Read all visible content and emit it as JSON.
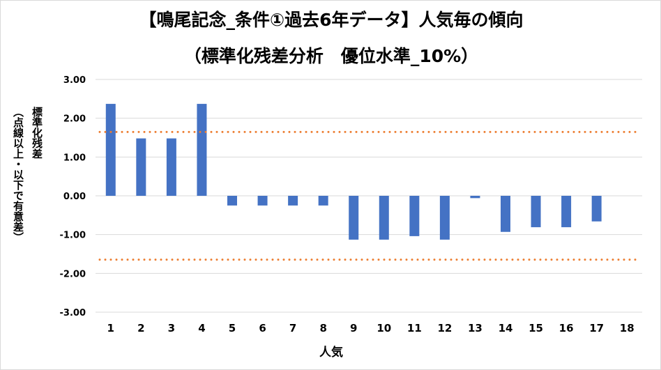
{
  "chart_data": {
    "type": "bar",
    "title_line1": "【鳴尾記念_条件①過去6年データ】人気毎の傾向",
    "title_line2": "（標準化残差分析　優位水準_10%）",
    "ylabel_line1": "標準化残差",
    "ylabel_line2": "（点線以上・以下で有意差）",
    "xlabel": "人気",
    "categories": [
      "1",
      "2",
      "3",
      "4",
      "5",
      "6",
      "7",
      "8",
      "9",
      "10",
      "11",
      "12",
      "13",
      "14",
      "15",
      "16",
      "17",
      "18"
    ],
    "series": [
      {
        "values": [
          2.37,
          1.48,
          1.48,
          2.37,
          -0.25,
          -0.25,
          -0.25,
          -0.25,
          -1.13,
          -1.13,
          -1.04,
          -1.13,
          -0.06,
          -0.93,
          -0.81,
          -0.81,
          -0.66,
          0
        ]
      }
    ],
    "thresholds": [
      1.645,
      -1.645
    ],
    "ylim": [
      -3,
      3
    ],
    "yticks": [
      "3.00",
      "2.00",
      "1.00",
      "0.00",
      "-1.00",
      "-2.00",
      "-3.00"
    ],
    "grid": true,
    "colors": {
      "bar": "#4472c4",
      "threshold": "#ed7d31",
      "grid": "#d9d9d9"
    }
  }
}
